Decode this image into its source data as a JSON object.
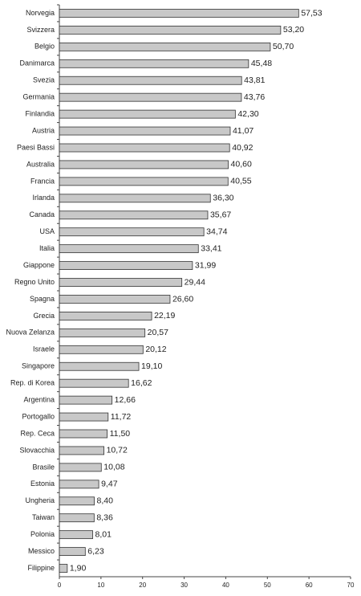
{
  "chart_data": {
    "type": "hbar",
    "categories": [
      "Norvegia",
      "Svizzera",
      "Belgio",
      "Danimarca",
      "Svezia",
      "Germania",
      "Finlandia",
      "Austria",
      "Paesi Bassi",
      "Australia",
      "Francia",
      "Irlanda",
      "Canada",
      "USA",
      "Italia",
      "Giappone",
      "Regno Unito",
      "Spagna",
      "Grecia",
      "Nuova Zelanza",
      "Israele",
      "Singapore",
      "Rep. di Korea",
      "Argentina",
      "Portogallo",
      "Rep. Ceca",
      "Slovacchia",
      "Brasile",
      "Estonia",
      "Ungheria",
      "Taiwan",
      "Polonia",
      "Messico",
      "Filippine"
    ],
    "values": [
      57.53,
      53.2,
      50.7,
      45.48,
      43.81,
      43.76,
      42.3,
      41.07,
      40.92,
      40.6,
      40.55,
      36.3,
      35.67,
      34.74,
      33.41,
      31.99,
      29.44,
      26.6,
      22.19,
      20.57,
      20.12,
      19.1,
      16.62,
      12.66,
      11.72,
      11.5,
      10.72,
      10.08,
      9.47,
      8.4,
      8.36,
      8.01,
      6.23,
      1.9
    ],
    "value_labels": [
      "57,53",
      "53,20",
      "50,70",
      "45,48",
      "43,81",
      "43,76",
      "42,30",
      "41,07",
      "40,92",
      "40,60",
      "40,55",
      "36,30",
      "35,67",
      "34,74",
      "33,41",
      "31,99",
      "29,44",
      "26,60",
      "22,19",
      "20,57",
      "20,12",
      "19,10",
      "16,62",
      "12,66",
      "11,72",
      "11,50",
      "10,72",
      "10,08",
      "9,47",
      "8,40",
      "8,36",
      "8,01",
      "6,23",
      "1,90"
    ],
    "color": "#c8c8c8",
    "xlim": [
      0,
      70
    ],
    "xticks": [
      0,
      10,
      20,
      30,
      40,
      50,
      60,
      70
    ]
  }
}
